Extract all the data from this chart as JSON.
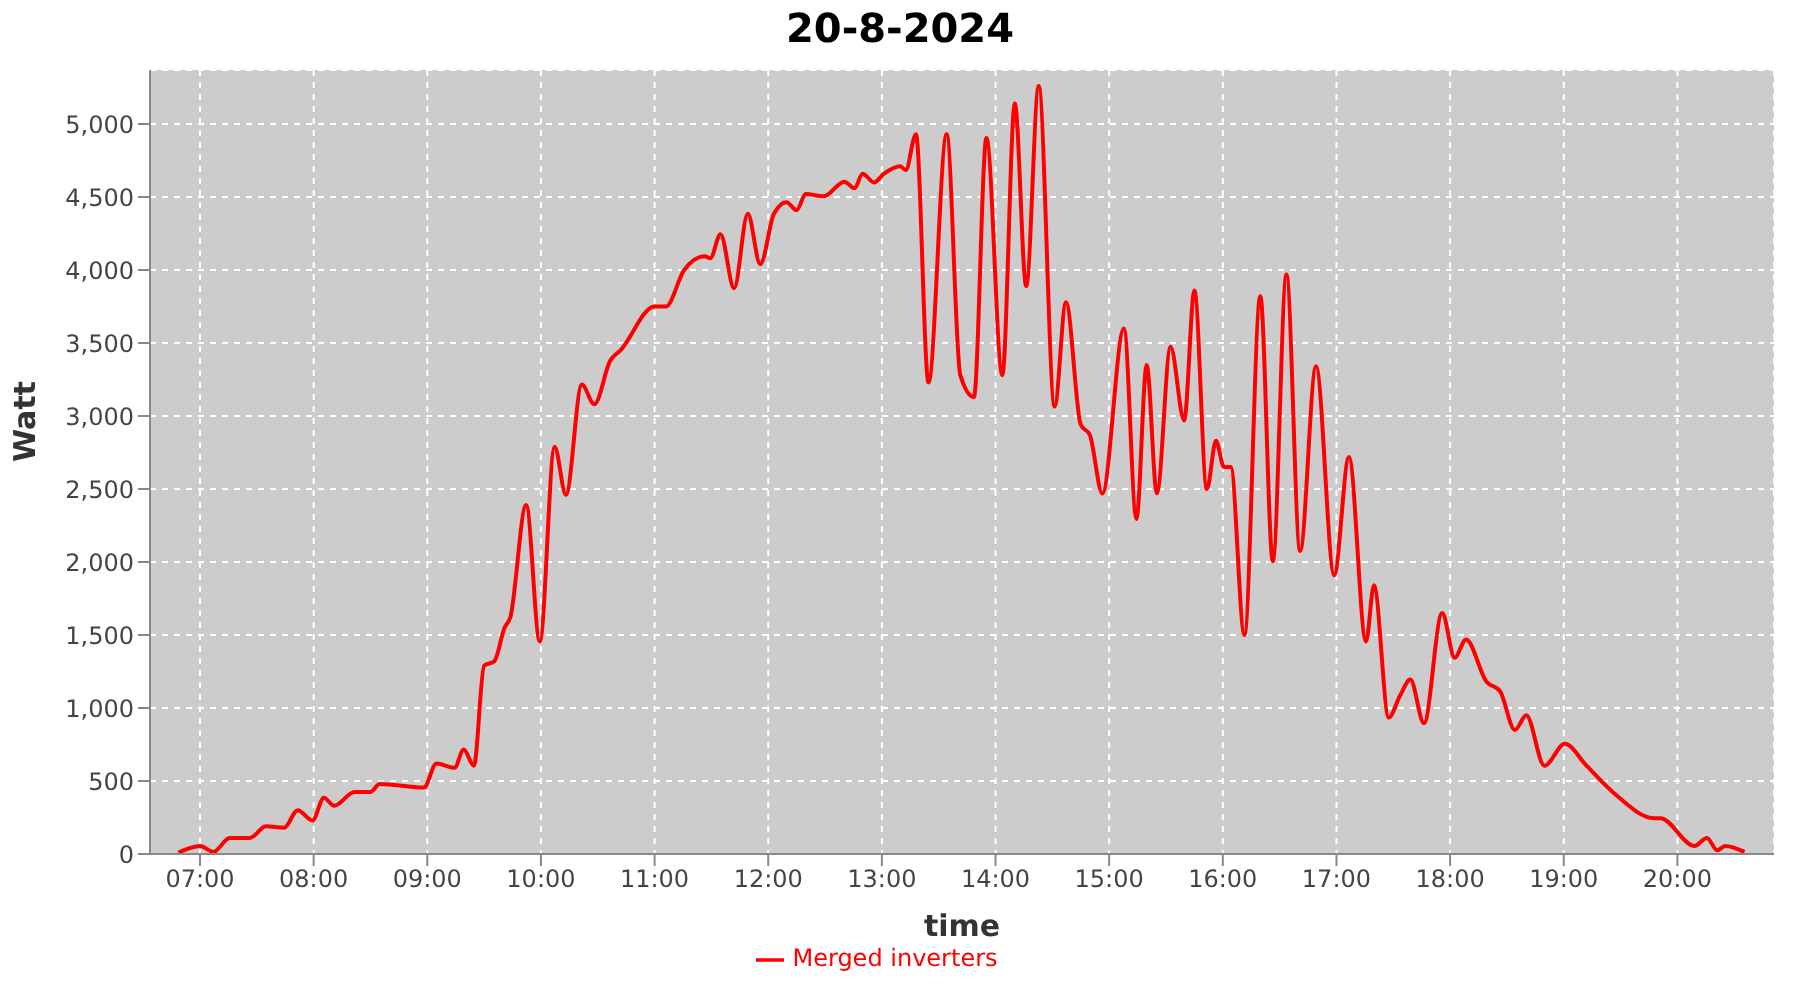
{
  "chart_data": {
    "type": "line",
    "title": "20-8-2024",
    "xlabel": "time",
    "ylabel": "Watt",
    "x": [
      6.81,
      7.0,
      7.12,
      7.26,
      7.44,
      7.58,
      7.74,
      7.86,
      7.99,
      8.09,
      8.18,
      8.36,
      8.5,
      8.58,
      8.97,
      9.08,
      9.24,
      9.32,
      9.41,
      9.5,
      9.59,
      9.68,
      9.73,
      9.87,
      9.99,
      10.12,
      10.22,
      10.36,
      10.47,
      10.61,
      10.7,
      11.0,
      11.1,
      11.26,
      11.44,
      11.49,
      11.58,
      11.7,
      11.82,
      11.93,
      12.05,
      12.16,
      12.25,
      12.33,
      12.49,
      12.67,
      12.76,
      12.83,
      12.93,
      13.02,
      13.16,
      13.21,
      13.3,
      13.41,
      13.57,
      13.69,
      13.81,
      13.92,
      14.06,
      14.17,
      14.27,
      14.38,
      14.52,
      14.62,
      14.75,
      14.83,
      14.94,
      15.13,
      15.24,
      15.33,
      15.42,
      15.54,
      15.66,
      15.75,
      15.86,
      15.94,
      16.01,
      16.07,
      16.19,
      16.33,
      16.44,
      16.56,
      16.68,
      16.82,
      16.98,
      17.11,
      17.26,
      17.33,
      17.46,
      17.56,
      17.65,
      17.77,
      17.93,
      18.04,
      18.14,
      18.32,
      18.44,
      18.57,
      18.67,
      18.83,
      19.01,
      19.2,
      19.43,
      19.8,
      19.85,
      20.15,
      20.26,
      20.35,
      20.42,
      20.59
    ],
    "series": [
      {
        "name": "Merged inverters",
        "color": "#ff0000",
        "values": [
          10,
          55,
          15,
          110,
          110,
          190,
          180,
          300,
          230,
          385,
          330,
          425,
          425,
          480,
          455,
          620,
          590,
          715,
          605,
          1290,
          1320,
          1550,
          1620,
          2390,
          1455,
          2790,
          2460,
          3215,
          3080,
          3380,
          3450,
          3750,
          3750,
          4000,
          4095,
          4080,
          4245,
          3875,
          4385,
          4040,
          4385,
          4465,
          4410,
          4520,
          4505,
          4605,
          4560,
          4660,
          4600,
          4660,
          4710,
          4685,
          4930,
          3230,
          4930,
          3280,
          3130,
          4905,
          3280,
          5140,
          3890,
          5260,
          3065,
          3780,
          2940,
          2870,
          2470,
          3600,
          2295,
          3350,
          2470,
          3475,
          2970,
          3860,
          2500,
          2830,
          2650,
          2650,
          1500,
          3820,
          2005,
          3970,
          2075,
          3340,
          1910,
          2720,
          1455,
          1840,
          935,
          1085,
          1195,
          895,
          1650,
          1345,
          1470,
          1180,
          1115,
          850,
          950,
          605,
          755,
          605,
          425,
          245,
          245,
          55,
          110,
          25,
          55,
          15
        ]
      }
    ],
    "xlim": [
      6.56,
      20.85
    ],
    "xticks": [
      {
        "value": 7,
        "label": "07:00"
      },
      {
        "value": 8,
        "label": "08:00"
      },
      {
        "value": 9,
        "label": "09:00"
      },
      {
        "value": 10,
        "label": "10:00"
      },
      {
        "value": 11,
        "label": "11:00"
      },
      {
        "value": 12,
        "label": "12:00"
      },
      {
        "value": 13,
        "label": "13:00"
      },
      {
        "value": 14,
        "label": "14:00"
      },
      {
        "value": 15,
        "label": "15:00"
      },
      {
        "value": 16,
        "label": "16:00"
      },
      {
        "value": 17,
        "label": "17:00"
      },
      {
        "value": 18,
        "label": "18:00"
      },
      {
        "value": 19,
        "label": "19:00"
      },
      {
        "value": 20,
        "label": "20:00"
      }
    ],
    "ylim": [
      0,
      5370
    ],
    "yticks": [
      0,
      500,
      {
        "value": 1000,
        "label": "1,000"
      },
      {
        "value": 1500,
        "label": "1,500"
      },
      {
        "value": 2000,
        "label": "2,000"
      },
      {
        "value": 2500,
        "label": "2,500"
      },
      {
        "value": 3000,
        "label": "3,000"
      },
      {
        "value": 3500,
        "label": "3,500"
      },
      {
        "value": 4000,
        "label": "4,000"
      },
      {
        "value": 4500,
        "label": "4,500"
      },
      {
        "value": 5000,
        "label": "5,000"
      }
    ],
    "grid": true,
    "legend": "bottom",
    "marker": "none",
    "line_style": "solid"
  }
}
